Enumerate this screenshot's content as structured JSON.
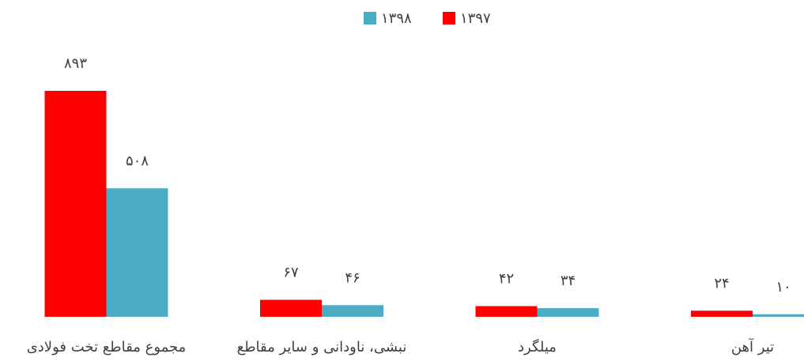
{
  "chart_data": {
    "type": "bar",
    "categories": [
      "مجموع مقاطع تخت فولادی",
      "نبشی، ناودانی و سایر مقاطع",
      "میلگرد",
      "تیر آهن"
    ],
    "series": [
      {
        "name": "۱۳۹۷",
        "color": "#ff0000",
        "values": [
          893,
          67,
          42,
          24
        ],
        "value_labels": [
          "۸۹۳",
          "۶۷",
          "۴۲",
          "۲۴"
        ]
      },
      {
        "name": "۱۳۹۸",
        "color": "#4bacc6",
        "values": [
          508,
          46,
          34,
          10
        ],
        "value_labels": [
          "۵۰۸",
          "۴۶",
          "۳۴",
          "۱۰"
        ]
      }
    ]
  }
}
